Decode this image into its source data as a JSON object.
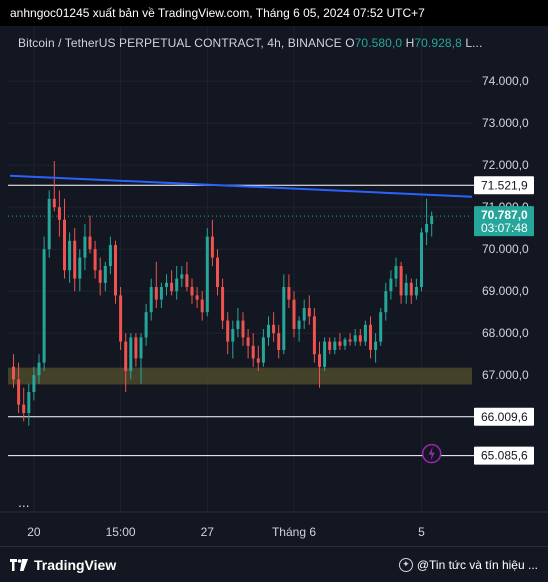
{
  "header": {
    "publish_line": "anhngoc01245 xuất bản về TradingView.com, Tháng 6 05, 2024 07:52 UTC+7"
  },
  "legend": {
    "symbol": "Bitcoin / TetherUS PERPETUAL CONTRACT, 4h, BINANCE",
    "open_label": "O",
    "open_value": "70.580,0",
    "high_label": "H",
    "high_value": "70.928,8",
    "low_label": "L..."
  },
  "colors": {
    "background": "#131722",
    "up": "#26a69a",
    "down": "#ef5350",
    "trendline": "#2962ff",
    "zone": "#4c4a2a",
    "price_tag": "#26a69a"
  },
  "more_label": "...",
  "footer": {
    "brand": "TradingView",
    "news": "@Tin tức và tín hiệu ..."
  },
  "chart_data": {
    "type": "candlestick",
    "ylim": [
      64600,
      74600
    ],
    "y_ticks": [
      "74.000,0",
      "73.000,0",
      "72.000,0",
      "71.000,0",
      "70.000,0",
      "69.000,0",
      "68.000,0",
      "67.000,0"
    ],
    "y_tick_values": [
      74000,
      73000,
      72000,
      71000,
      70000,
      69000,
      68000,
      67000
    ],
    "x_ticks": [
      "20",
      "15:00",
      "27",
      "Tháng 6",
      "5"
    ],
    "x_tick_index": [
      4,
      21,
      38,
      55,
      80
    ],
    "horizontal_lines": [
      {
        "label": "71.521,9",
        "value": 71521.9
      },
      {
        "label": "66.009,6",
        "value": 66009.6
      },
      {
        "label": "65.085,6",
        "value": 65085.6
      }
    ],
    "current_price": {
      "label": "70.787,0",
      "countdown": "03:07:48",
      "value": 70787
    },
    "support_zone": [
      66780,
      67180
    ],
    "trendline": {
      "start": {
        "index": 0,
        "value": 71750
      },
      "end": {
        "index": 91,
        "value": 71250
      }
    },
    "candles": [
      {
        "o": 67200,
        "h": 67500,
        "l": 66700,
        "c": 66900
      },
      {
        "o": 66900,
        "h": 67300,
        "l": 66100,
        "c": 66300
      },
      {
        "o": 66300,
        "h": 66700,
        "l": 65900,
        "c": 66100
      },
      {
        "o": 66100,
        "h": 66800,
        "l": 65800,
        "c": 66600
      },
      {
        "o": 66600,
        "h": 67200,
        "l": 66400,
        "c": 67000
      },
      {
        "o": 67000,
        "h": 67500,
        "l": 66800,
        "c": 67300
      },
      {
        "o": 67300,
        "h": 70300,
        "l": 67100,
        "c": 70000
      },
      {
        "o": 70000,
        "h": 71400,
        "l": 69800,
        "c": 71200
      },
      {
        "o": 71200,
        "h": 72100,
        "l": 70900,
        "c": 71000
      },
      {
        "o": 71000,
        "h": 71400,
        "l": 70300,
        "c": 70700
      },
      {
        "o": 70700,
        "h": 71200,
        "l": 69300,
        "c": 69500
      },
      {
        "o": 69500,
        "h": 70400,
        "l": 69200,
        "c": 70200
      },
      {
        "o": 70200,
        "h": 70500,
        "l": 69000,
        "c": 69300
      },
      {
        "o": 69300,
        "h": 70000,
        "l": 69000,
        "c": 69800
      },
      {
        "o": 69800,
        "h": 70600,
        "l": 69500,
        "c": 70300
      },
      {
        "o": 70300,
        "h": 70800,
        "l": 69900,
        "c": 70000
      },
      {
        "o": 70000,
        "h": 70200,
        "l": 69300,
        "c": 69500
      },
      {
        "o": 69500,
        "h": 69800,
        "l": 68900,
        "c": 69200
      },
      {
        "o": 69200,
        "h": 69700,
        "l": 69000,
        "c": 69600
      },
      {
        "o": 69600,
        "h": 70300,
        "l": 69400,
        "c": 70100
      },
      {
        "o": 70100,
        "h": 70200,
        "l": 68700,
        "c": 68900
      },
      {
        "o": 68900,
        "h": 69100,
        "l": 67600,
        "c": 67800
      },
      {
        "o": 67800,
        "h": 68000,
        "l": 66600,
        "c": 67100
      },
      {
        "o": 67100,
        "h": 68000,
        "l": 66900,
        "c": 67900
      },
      {
        "o": 67900,
        "h": 68000,
        "l": 67200,
        "c": 67400
      },
      {
        "o": 67400,
        "h": 68000,
        "l": 66800,
        "c": 67900
      },
      {
        "o": 67900,
        "h": 68700,
        "l": 67700,
        "c": 68500
      },
      {
        "o": 68500,
        "h": 69300,
        "l": 68300,
        "c": 69100
      },
      {
        "o": 69100,
        "h": 69700,
        "l": 68600,
        "c": 68800
      },
      {
        "o": 68800,
        "h": 69200,
        "l": 68600,
        "c": 69100
      },
      {
        "o": 69100,
        "h": 69400,
        "l": 68900,
        "c": 69200
      },
      {
        "o": 69200,
        "h": 69500,
        "l": 68900,
        "c": 69000
      },
      {
        "o": 69000,
        "h": 69600,
        "l": 68800,
        "c": 69300
      },
      {
        "o": 69300,
        "h": 69600,
        "l": 69100,
        "c": 69400
      },
      {
        "o": 69400,
        "h": 69700,
        "l": 69000,
        "c": 69100
      },
      {
        "o": 69100,
        "h": 69300,
        "l": 68700,
        "c": 68900
      },
      {
        "o": 68900,
        "h": 69100,
        "l": 68600,
        "c": 68800
      },
      {
        "o": 68800,
        "h": 69000,
        "l": 68300,
        "c": 68500
      },
      {
        "o": 68500,
        "h": 70500,
        "l": 68400,
        "c": 70300
      },
      {
        "o": 70300,
        "h": 70700,
        "l": 69600,
        "c": 69800
      },
      {
        "o": 69800,
        "h": 70000,
        "l": 68900,
        "c": 69100
      },
      {
        "o": 69100,
        "h": 69300,
        "l": 68100,
        "c": 68300
      },
      {
        "o": 68300,
        "h": 68500,
        "l": 67500,
        "c": 67800
      },
      {
        "o": 67800,
        "h": 68300,
        "l": 67400,
        "c": 68100
      },
      {
        "o": 68100,
        "h": 68600,
        "l": 67900,
        "c": 68300
      },
      {
        "o": 68300,
        "h": 68500,
        "l": 67700,
        "c": 67900
      },
      {
        "o": 67900,
        "h": 68100,
        "l": 67400,
        "c": 67700
      },
      {
        "o": 67700,
        "h": 68000,
        "l": 67200,
        "c": 67400
      },
      {
        "o": 67400,
        "h": 67700,
        "l": 67100,
        "c": 67300
      },
      {
        "o": 67300,
        "h": 68100,
        "l": 67200,
        "c": 67900
      },
      {
        "o": 67900,
        "h": 68400,
        "l": 67700,
        "c": 68200
      },
      {
        "o": 68200,
        "h": 68500,
        "l": 67800,
        "c": 68000
      },
      {
        "o": 68000,
        "h": 68200,
        "l": 67400,
        "c": 67600
      },
      {
        "o": 67600,
        "h": 69400,
        "l": 67500,
        "c": 69100
      },
      {
        "o": 69100,
        "h": 69400,
        "l": 68600,
        "c": 68800
      },
      {
        "o": 68800,
        "h": 69000,
        "l": 67900,
        "c": 68100
      },
      {
        "o": 68100,
        "h": 68400,
        "l": 67800,
        "c": 68300
      },
      {
        "o": 68300,
        "h": 68800,
        "l": 68100,
        "c": 68600
      },
      {
        "o": 68600,
        "h": 68900,
        "l": 68200,
        "c": 68400
      },
      {
        "o": 68400,
        "h": 68600,
        "l": 67300,
        "c": 67500
      },
      {
        "o": 67500,
        "h": 67800,
        "l": 66700,
        "c": 67200
      },
      {
        "o": 67200,
        "h": 67900,
        "l": 67100,
        "c": 67800
      },
      {
        "o": 67800,
        "h": 67900,
        "l": 67500,
        "c": 67600
      },
      {
        "o": 67600,
        "h": 67900,
        "l": 67500,
        "c": 67800
      },
      {
        "o": 67800,
        "h": 68000,
        "l": 67600,
        "c": 67700
      },
      {
        "o": 67700,
        "h": 67900,
        "l": 67600,
        "c": 67850
      },
      {
        "o": 67850,
        "h": 68000,
        "l": 67700,
        "c": 67800
      },
      {
        "o": 67800,
        "h": 68100,
        "l": 67700,
        "c": 67950
      },
      {
        "o": 67950,
        "h": 68100,
        "l": 67700,
        "c": 67800
      },
      {
        "o": 67800,
        "h": 68300,
        "l": 67700,
        "c": 68200
      },
      {
        "o": 68200,
        "h": 68400,
        "l": 67400,
        "c": 67600
      },
      {
        "o": 67600,
        "h": 68000,
        "l": 67300,
        "c": 67800
      },
      {
        "o": 67800,
        "h": 68600,
        "l": 67700,
        "c": 68500
      },
      {
        "o": 68500,
        "h": 69200,
        "l": 68300,
        "c": 69000
      },
      {
        "o": 69000,
        "h": 69500,
        "l": 68800,
        "c": 69300
      },
      {
        "o": 69300,
        "h": 69800,
        "l": 69100,
        "c": 69600
      },
      {
        "o": 69600,
        "h": 69700,
        "l": 68700,
        "c": 68900
      },
      {
        "o": 68900,
        "h": 69400,
        "l": 68700,
        "c": 69200
      },
      {
        "o": 69200,
        "h": 69300,
        "l": 68700,
        "c": 68900
      },
      {
        "o": 68900,
        "h": 69300,
        "l": 68800,
        "c": 69100
      },
      {
        "o": 69100,
        "h": 70500,
        "l": 69000,
        "c": 70400
      },
      {
        "o": 70400,
        "h": 71200,
        "l": 70100,
        "c": 70600
      },
      {
        "o": 70600,
        "h": 70900,
        "l": 70300,
        "c": 70787
      }
    ]
  }
}
